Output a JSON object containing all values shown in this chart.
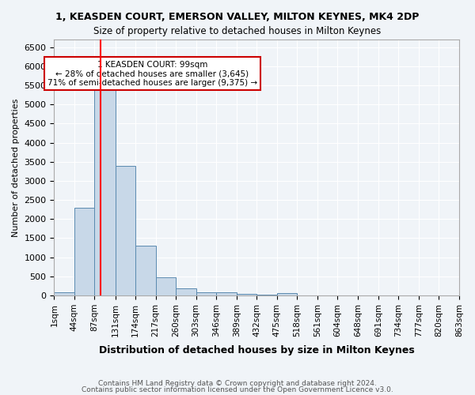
{
  "title": "1, KEASDEN COURT, EMERSON VALLEY, MILTON KEYNES, MK4 2DP",
  "subtitle": "Size of property relative to detached houses in Milton Keynes",
  "xlabel": "Distribution of detached houses by size in Milton Keynes",
  "ylabel": "Number of detached properties",
  "bar_color": "#c8d8e8",
  "bar_edge_color": "#5a8ab0",
  "background_color": "#f0f4f8",
  "grid_color": "#ffffff",
  "red_line_x": 99,
  "annotation_title": "1 KEASDEN COURT: 99sqm",
  "annotation_line1": "← 28% of detached houses are smaller (3,645)",
  "annotation_line2": "71% of semi-detached houses are larger (9,375) →",
  "annotation_box_color": "#ffffff",
  "annotation_box_edge": "#cc0000",
  "footer_line1": "Contains HM Land Registry data © Crown copyright and database right 2024.",
  "footer_line2": "Contains public sector information licensed under the Open Government Licence v3.0.",
  "bin_edges": [
    1,
    44,
    87,
    131,
    174,
    217,
    260,
    303,
    346,
    389,
    432,
    475,
    518,
    561,
    604,
    648,
    691,
    734,
    777,
    820,
    863
  ],
  "bin_labels": [
    "1sqm",
    "44sqm",
    "87sqm",
    "131sqm",
    "174sqm",
    "217sqm",
    "260sqm",
    "303sqm",
    "346sqm",
    "389sqm",
    "432sqm",
    "475sqm",
    "518sqm",
    "561sqm",
    "604sqm",
    "648sqm",
    "691sqm",
    "734sqm",
    "777sqm",
    "820sqm",
    "863sqm"
  ],
  "bar_heights": [
    75,
    2300,
    5450,
    3400,
    1300,
    475,
    185,
    90,
    75,
    40,
    30,
    65,
    0,
    0,
    0,
    0,
    0,
    0,
    0,
    0
  ],
  "ylim": [
    0,
    6700
  ],
  "yticks": [
    0,
    500,
    1000,
    1500,
    2000,
    2500,
    3000,
    3500,
    4000,
    4500,
    5000,
    5500,
    6000,
    6500
  ]
}
